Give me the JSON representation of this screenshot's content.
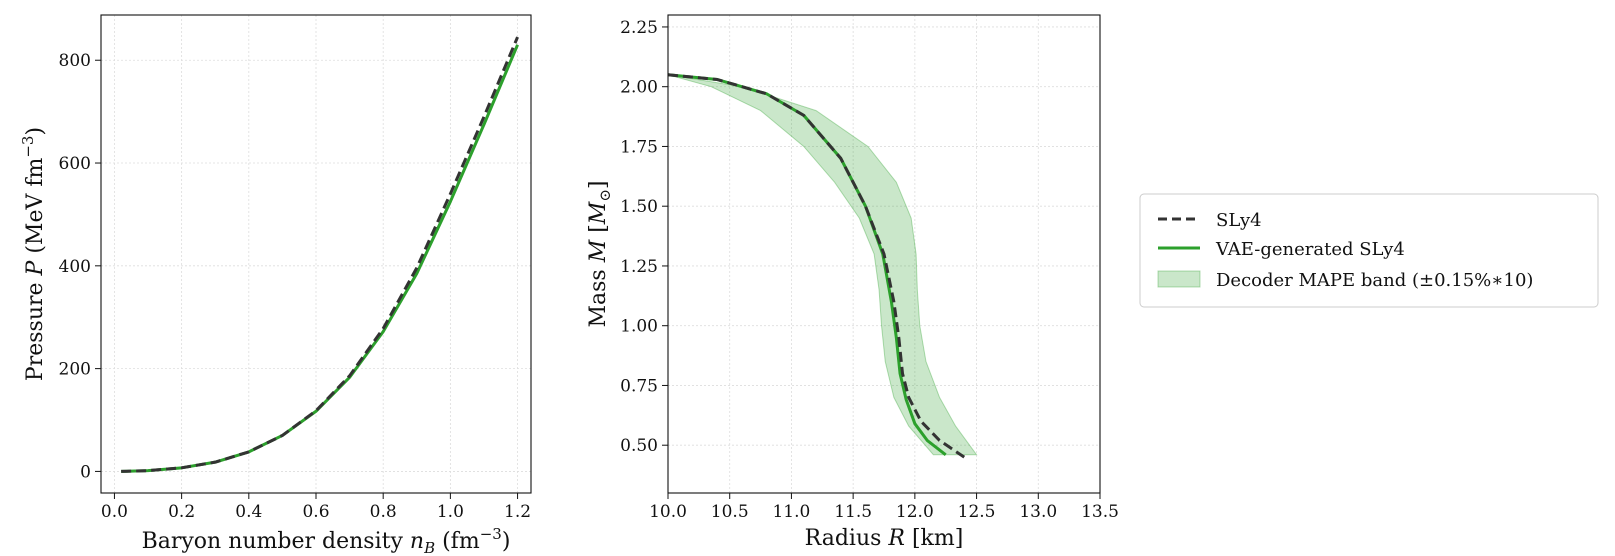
{
  "chart_data": [
    {
      "type": "line",
      "xlabel": "Baryon number density n_B (fm⁻³)",
      "ylabel": "Pressure P (MeV fm⁻³)",
      "xlabel_parts": {
        "pre": "Baryon number density ",
        "var": "n",
        "sub": "B",
        "post_open": " (fm",
        "sup": "−3",
        "post_close": ")"
      },
      "ylabel_parts": {
        "pre": "Pressure ",
        "var": "P",
        "post_open": " (MeV fm",
        "sup": "−3",
        "post_close": ")"
      },
      "xlim": [
        -0.04,
        1.24
      ],
      "ylim": [
        -42,
        888
      ],
      "xticks": [
        0.0,
        0.2,
        0.4,
        0.6,
        0.8,
        1.0,
        1.2
      ],
      "xtick_labels": [
        "0.0",
        "0.2",
        "0.4",
        "0.6",
        "0.8",
        "1.0",
        "1.2"
      ],
      "yticks": [
        0,
        200,
        400,
        600,
        800
      ],
      "ytick_labels": [
        "0",
        "200",
        "400",
        "600",
        "800"
      ],
      "grid": true,
      "series": [
        {
          "name": "SLy4",
          "style": "dashed",
          "color": "#333333",
          "x": [
            0.02,
            0.1,
            0.2,
            0.3,
            0.4,
            0.5,
            0.6,
            0.7,
            0.8,
            0.9,
            1.0,
            1.1,
            1.2
          ],
          "y": [
            0,
            1.5,
            7,
            18,
            38,
            70,
            118,
            186,
            278,
            396,
            540,
            690,
            845
          ]
        },
        {
          "name": "VAE-generated SLy4",
          "style": "solid",
          "color": "#2ca02c",
          "x": [
            0.02,
            0.1,
            0.2,
            0.3,
            0.4,
            0.5,
            0.6,
            0.7,
            0.8,
            0.9,
            1.0,
            1.1,
            1.2
          ],
          "y": [
            0,
            1.5,
            7,
            18,
            38,
            70,
            117,
            183,
            272,
            385,
            525,
            675,
            830
          ]
        }
      ]
    },
    {
      "type": "line",
      "xlabel": "Radius R [km]",
      "ylabel": "Mass M [M⊙]",
      "xlabel_parts": {
        "pre": "Radius ",
        "var": "R",
        "post": " [km]"
      },
      "ylabel_parts": {
        "pre": "Mass ",
        "var": "M",
        "open": " [",
        "var2": "M",
        "sub": "⊙",
        "close": "]"
      },
      "xlim": [
        10.0,
        13.5
      ],
      "ylim": [
        0.3,
        2.3
      ],
      "xticks": [
        10.0,
        10.5,
        11.0,
        11.5,
        12.0,
        12.5,
        13.0,
        13.5
      ],
      "xtick_labels": [
        "10.0",
        "10.5",
        "11.0",
        "11.5",
        "12.0",
        "12.5",
        "13.0",
        "13.5"
      ],
      "yticks": [
        0.5,
        0.75,
        1.0,
        1.25,
        1.5,
        1.75,
        2.0,
        2.25
      ],
      "ytick_labels": [
        "0.50",
        "0.75",
        "1.00",
        "1.25",
        "1.50",
        "1.75",
        "2.00",
        "2.25"
      ],
      "grid": true,
      "band": {
        "name": "Decoder MAPE band (±0.15% * 10)",
        "color": "#2ca02c",
        "y": [
          2.05,
          2.0,
          1.9,
          1.75,
          1.6,
          1.45,
          1.3,
          1.15,
          1.0,
          0.85,
          0.7,
          0.58,
          0.46
        ],
        "x_lower": [
          10.0,
          10.35,
          10.75,
          11.1,
          11.35,
          11.55,
          11.67,
          11.71,
          11.73,
          11.76,
          11.83,
          11.95,
          12.15
        ],
        "x_upper": [
          10.0,
          10.6,
          11.2,
          11.62,
          11.85,
          11.97,
          12.01,
          12.02,
          12.04,
          12.09,
          12.2,
          12.33,
          12.5
        ]
      },
      "series": [
        {
          "name": "SLy4",
          "style": "dashed",
          "color": "#333333",
          "x": [
            10.0,
            10.4,
            10.8,
            11.1,
            11.4,
            11.6,
            11.75,
            11.83,
            11.87,
            11.9,
            11.95,
            12.05,
            12.2,
            12.4
          ],
          "y": [
            2.05,
            2.03,
            1.97,
            1.88,
            1.7,
            1.5,
            1.3,
            1.1,
            0.95,
            0.8,
            0.7,
            0.6,
            0.52,
            0.45
          ]
        },
        {
          "name": "VAE-generated SLy4",
          "style": "solid",
          "color": "#2ca02c",
          "x": [
            10.0,
            10.4,
            10.8,
            11.1,
            11.4,
            11.6,
            11.74,
            11.81,
            11.85,
            11.88,
            11.93,
            12.0,
            12.1,
            12.25
          ],
          "y": [
            2.05,
            2.03,
            1.97,
            1.88,
            1.7,
            1.5,
            1.3,
            1.1,
            0.95,
            0.8,
            0.69,
            0.59,
            0.52,
            0.46
          ]
        }
      ]
    }
  ],
  "legend": {
    "items": [
      {
        "label": "SLy4",
        "kind": "dashed",
        "color": "#333333"
      },
      {
        "label": "VAE-generated SLy4",
        "kind": "solid",
        "color": "#2ca02c"
      },
      {
        "label": "Decoder MAPE band (±0.15%∗10)",
        "kind": "band",
        "color": "#2ca02c"
      }
    ]
  }
}
